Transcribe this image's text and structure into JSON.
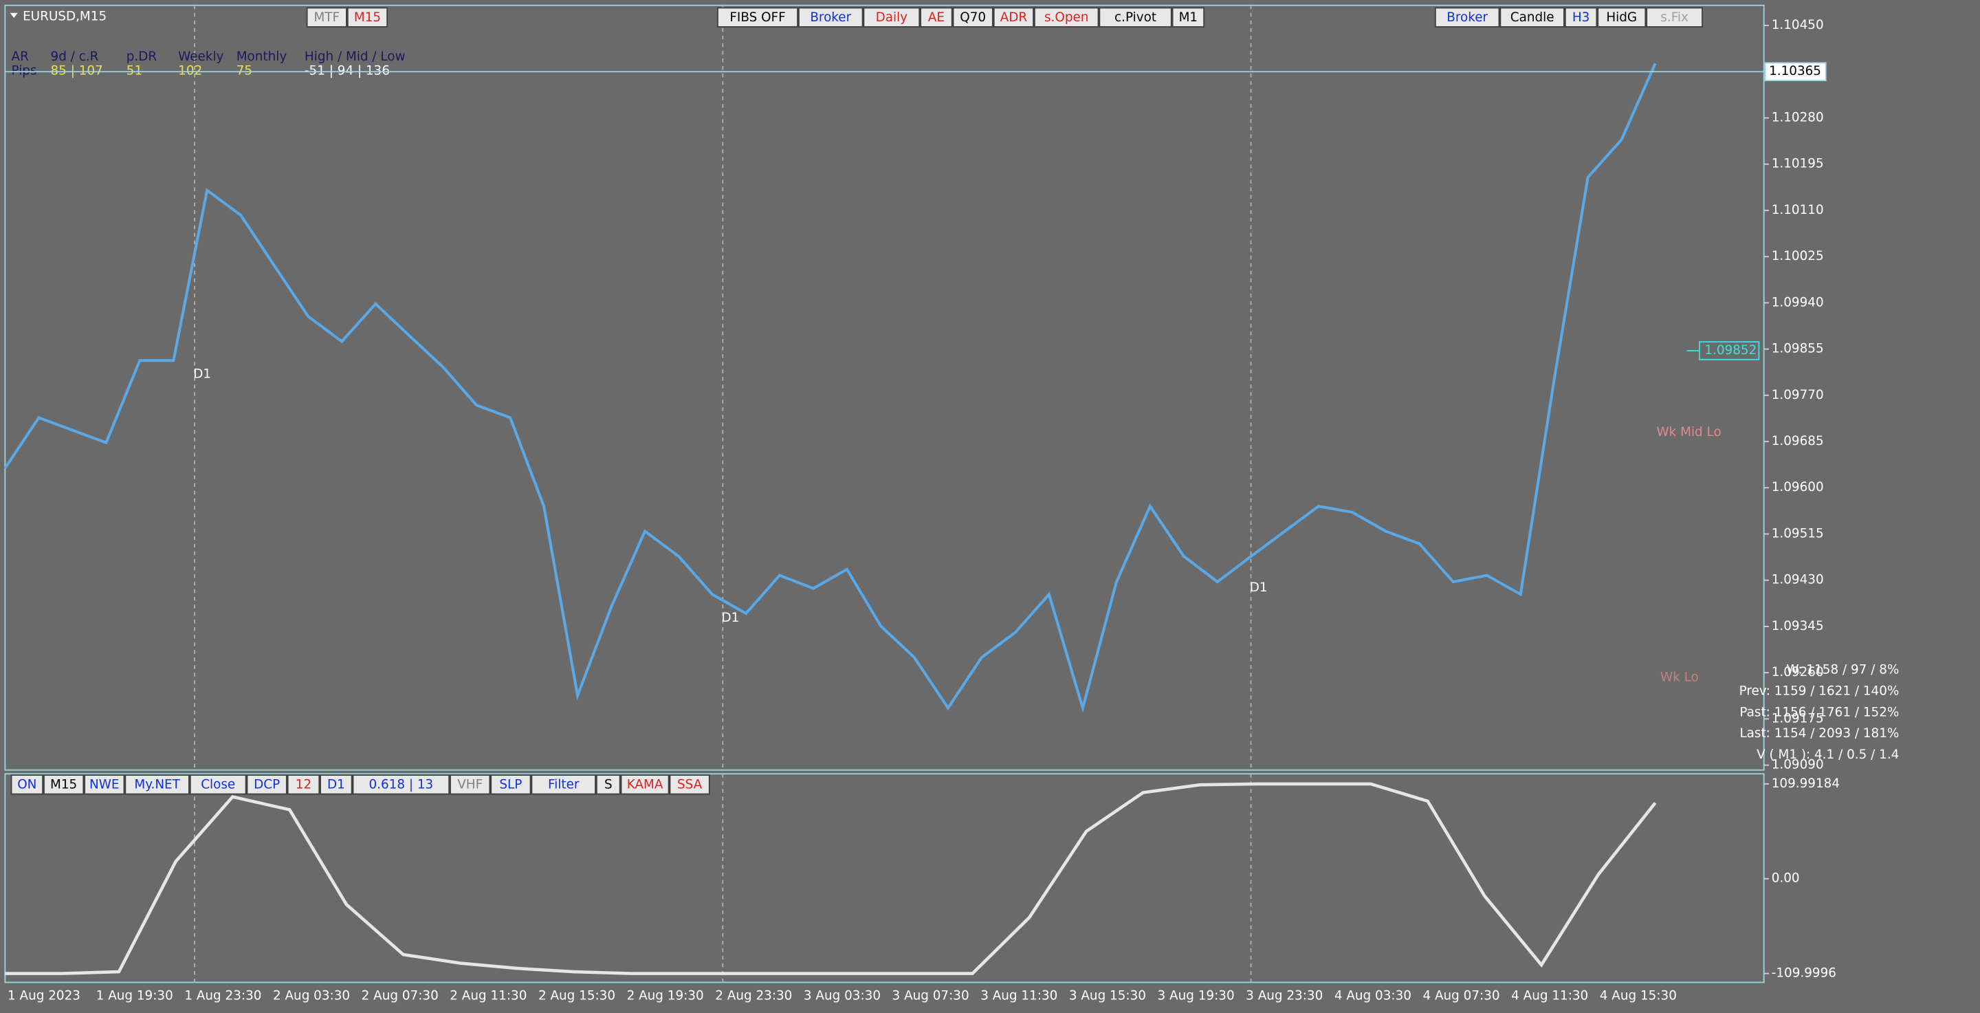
{
  "window": {
    "symbol": "EURUSD,M15"
  },
  "toolbars": {
    "top_left": [
      {
        "label": "MTF",
        "color": "#808080"
      },
      {
        "label": "M15",
        "color": "#e02020"
      }
    ],
    "top_center": [
      {
        "label": "FIBS OFF",
        "color": "#000000"
      },
      {
        "label": "Broker",
        "color": "#1030e0"
      },
      {
        "label": "Daily",
        "color": "#e02020"
      },
      {
        "label": "AE",
        "color": "#e02020"
      },
      {
        "label": "Q70",
        "color": "#000000"
      },
      {
        "label": "ADR",
        "color": "#e02020"
      },
      {
        "label": "s.Open",
        "color": "#e02020"
      },
      {
        "label": "c.Pivot",
        "color": "#000000"
      },
      {
        "label": "M1",
        "color": "#000000"
      }
    ],
    "top_right": [
      {
        "label": "Broker",
        "color": "#1030e0"
      },
      {
        "label": "Candle",
        "color": "#000000"
      },
      {
        "label": "H3",
        "color": "#1030e0"
      },
      {
        "label": "HidG",
        "color": "#000000"
      },
      {
        "label": "s.Fix",
        "color": "#a0a0a0"
      }
    ],
    "bottom": [
      {
        "label": "ON",
        "color": "#1030e0"
      },
      {
        "label": "M15",
        "color": "#000000"
      },
      {
        "label": "NWE",
        "color": "#1030e0"
      },
      {
        "label": "My.NET",
        "color": "#1030e0"
      },
      {
        "label": "Close",
        "color": "#1030e0"
      },
      {
        "label": "DCP",
        "color": "#1030e0"
      },
      {
        "label": "12",
        "color": "#e02020"
      },
      {
        "label": "D1",
        "color": "#1030e0"
      },
      {
        "label": "0.618 | 13",
        "color": "#1030e0"
      },
      {
        "label": "VHF",
        "color": "#808080"
      },
      {
        "label": "SLP",
        "color": "#1030e0"
      },
      {
        "label": "Filter",
        "color": "#1030e0"
      },
      {
        "label": "S",
        "color": "#000000"
      },
      {
        "label": "KAMA",
        "color": "#e02020"
      },
      {
        "label": "SSA",
        "color": "#e02020"
      }
    ]
  },
  "info_panel": {
    "headers": [
      "AR",
      "9d / c.R",
      "p.DR",
      "Weekly",
      "Monthly",
      "High / Mid / Low"
    ],
    "row": [
      "Pips",
      "85 | 107",
      "51",
      "102",
      "75",
      "-51 | 94 | 136"
    ]
  },
  "d1_labels": [
    "D1",
    "D1",
    "D1"
  ],
  "level_labels": [
    "Wk Mid Lo",
    "Wk Lo"
  ],
  "price_box": {
    "value": 1.09852,
    "label": "1.09852"
  },
  "current_price": {
    "value": 1.10365,
    "label": "1.10365"
  },
  "stats": [
    "W: 1158 / 97 / 8%",
    "Prev: 1159 / 1621 / 140%",
    "Past: 1156 / 1761 / 152%",
    "Last: 1154 / 2093 / 181%",
    "V ( M1 ): 4.1 / 0.5 / 1.4"
  ],
  "time_axis": {
    "labels": [
      "1 Aug 2023",
      "1 Aug 19:30",
      "1 Aug 23:30",
      "2 Aug 03:30",
      "2 Aug 07:30",
      "2 Aug 11:30",
      "2 Aug 15:30",
      "2 Aug 19:30",
      "2 Aug 23:30",
      "3 Aug 03:30",
      "3 Aug 07:30",
      "3 Aug 11:30",
      "3 Aug 15:30",
      "3 Aug 19:30",
      "3 Aug 23:30",
      "4 Aug 03:30",
      "4 Aug 07:30",
      "4 Aug 11:30",
      "4 Aug 15:30"
    ]
  },
  "chart_data": [
    {
      "type": "line",
      "series": [
        {
          "name": "EURUSD",
          "color": "#5aa8e6",
          "values": [
            1.09636,
            1.09729,
            1.09706,
            1.09683,
            1.09834,
            1.09834,
            1.10147,
            1.10101,
            1.10008,
            1.09915,
            1.09869,
            1.09938,
            1.0988,
            1.09822,
            1.09752,
            1.09729,
            1.09566,
            1.09218,
            1.09381,
            1.0952,
            1.09474,
            1.09404,
            1.09369,
            1.09439,
            1.09415,
            1.0945,
            1.09346,
            1.09288,
            1.09195,
            1.09288,
            1.09334,
            1.09404,
            1.09195,
            1.09427,
            1.09566,
            1.09474,
            1.09427,
            1.09474,
            1.0952,
            1.09566,
            1.09555,
            1.0952,
            1.09497,
            1.09427,
            1.09439,
            1.09404,
            1.09799,
            1.10171,
            1.1024,
            1.1038
          ]
        }
      ],
      "ylim": [
        1.09081,
        1.10487
      ],
      "yticks": [
        {
          "value": 1.1045,
          "label": "1.10450"
        },
        {
          "value": 1.1028,
          "label": "1.10280"
        },
        {
          "value": 1.10195,
          "label": "1.10195"
        },
        {
          "value": 1.1011,
          "label": "1.10110"
        },
        {
          "value": 1.10025,
          "label": "1.10025"
        },
        {
          "value": 1.0994,
          "label": "1.09940"
        },
        {
          "value": 1.09855,
          "label": "1.09855"
        },
        {
          "value": 1.0977,
          "label": "1.09770"
        },
        {
          "value": 1.09685,
          "label": "1.09685"
        },
        {
          "value": 1.096,
          "label": "1.09600"
        },
        {
          "value": 1.09515,
          "label": "1.09515"
        },
        {
          "value": 1.0943,
          "label": "1.09430"
        },
        {
          "value": 1.09345,
          "label": "1.09345"
        },
        {
          "value": 1.0926,
          "label": "1.09260"
        },
        {
          "value": 1.09175,
          "label": "1.09175"
        },
        {
          "value": 1.0909,
          "label": "1.09090"
        }
      ]
    },
    {
      "type": "line",
      "series": [
        {
          "name": "Oscillator",
          "color": "#e6e6e6",
          "values": [
            -110,
            -110,
            -108,
            20,
            95,
            80,
            -30,
            -88,
            -98,
            -104,
            -108,
            -110,
            -110,
            -110,
            -110,
            -110,
            -110,
            -110,
            -45,
            55,
            100,
            109,
            110,
            110,
            110,
            90,
            -20,
            -100,
            5,
            88
          ]
        }
      ],
      "ylim": [
        -120.3,
        121.7
      ],
      "yticks": [
        109.99184,
        {
          "value": 0,
          "label": "0.00"
        },
        -109.9996
      ]
    }
  ]
}
